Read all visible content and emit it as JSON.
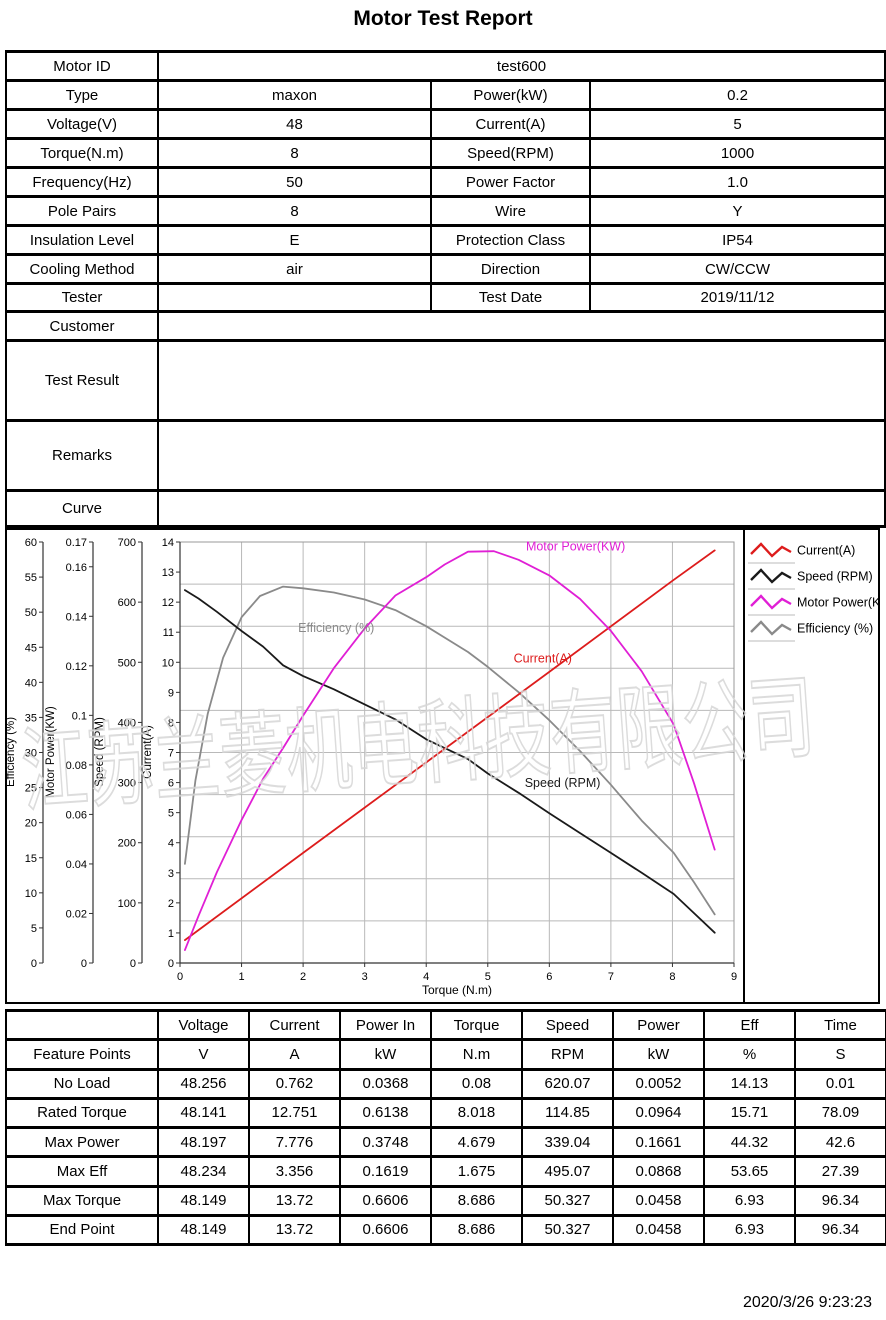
{
  "title": "Motor Test Report",
  "watermark": "江苏兰菱机电科技有限公司",
  "footer": {
    "timestamp": "2020/3/26 9:23:23"
  },
  "info_table": {
    "rows": [
      {
        "label": "Motor ID",
        "value": "test600"
      },
      {
        "label": "Type",
        "value": "maxon",
        "label2": "Power(kW)",
        "value2": "0.2"
      },
      {
        "label": "Voltage(V)",
        "value": "48",
        "label2": "Current(A)",
        "value2": "5"
      },
      {
        "label": "Torque(N.m)",
        "value": "8",
        "label2": "Speed(RPM)",
        "value2": "1000"
      },
      {
        "label": "Frequency(Hz)",
        "value": "50",
        "label2": "Power Factor",
        "value2": "1.0"
      },
      {
        "label": "Pole Pairs",
        "value": "8",
        "label2": "Wire",
        "value2": "Y"
      },
      {
        "label": "Insulation Level",
        "value": "E",
        "label2": "Protection Class",
        "value2": "IP54"
      },
      {
        "label": "Cooling Method",
        "value": "air",
        "label2": "Direction",
        "value2": "CW/CCW"
      },
      {
        "label": "Tester",
        "value": "",
        "label2": "Test Date",
        "value2": "2019/11/12"
      },
      {
        "label": "Customer",
        "value": ""
      },
      {
        "label": "Test Result",
        "value": ""
      },
      {
        "label": "Remarks",
        "value": ""
      },
      {
        "label": "Curve",
        "value": ""
      }
    ]
  },
  "chart_data": {
    "type": "line",
    "xlabel": "Torque (N.m)",
    "xlim": [
      0,
      9
    ],
    "x_ticks": [
      0,
      1,
      2,
      3,
      4,
      5,
      6,
      7,
      8,
      9
    ],
    "grid": true,
    "axes": [
      {
        "title": "Efficiency (%)",
        "min": 0,
        "max": 60,
        "ticks": [
          0,
          5,
          10,
          15,
          20,
          25,
          30,
          35,
          40,
          45,
          50,
          55,
          60
        ]
      },
      {
        "title": "Motor Power(KW)",
        "min": 0,
        "max": 0.17,
        "ticks": [
          0,
          0.02,
          0.04,
          0.06,
          0.08,
          0.1,
          0.12,
          0.14,
          0.16,
          0.17
        ]
      },
      {
        "title": "Speed (RPM)",
        "min": 0,
        "max": 700,
        "ticks": [
          0,
          100,
          200,
          300,
          400,
          500,
          600,
          700
        ]
      },
      {
        "title": "Current(A)",
        "min": 0,
        "max": 14,
        "ticks": [
          0,
          1,
          2,
          3,
          4,
          5,
          6,
          7,
          8,
          9,
          10,
          11,
          12,
          13,
          14
        ]
      }
    ],
    "series": [
      {
        "name": "Efficiency (%)",
        "color": "#8a8a8a",
        "axis": 0,
        "points": [
          [
            0.08,
            14.13
          ],
          [
            0.25,
            26
          ],
          [
            0.45,
            35.5
          ],
          [
            0.7,
            43.5
          ],
          [
            1,
            49.3
          ],
          [
            1.3,
            52.3
          ],
          [
            1.675,
            53.65
          ],
          [
            2,
            53.4
          ],
          [
            2.5,
            52.8
          ],
          [
            3,
            51.8
          ],
          [
            3.5,
            50.3
          ],
          [
            4,
            48.0
          ],
          [
            4.679,
            44.32
          ],
          [
            5,
            42.2
          ],
          [
            5.5,
            38.6
          ],
          [
            6,
            34.6
          ],
          [
            6.5,
            30.2
          ],
          [
            7,
            25.4
          ],
          [
            7.5,
            20.3
          ],
          [
            8.018,
            15.71
          ],
          [
            8.35,
            11.5
          ],
          [
            8.686,
            6.93
          ]
        ]
      },
      {
        "name": "Speed (RPM)",
        "color": "#1a1a1a",
        "axis": 2,
        "points": [
          [
            0.08,
            620.07
          ],
          [
            0.3,
            606
          ],
          [
            0.6,
            584
          ],
          [
            1,
            552
          ],
          [
            1.35,
            526
          ],
          [
            1.675,
            495.07
          ],
          [
            2,
            477
          ],
          [
            2.5,
            455
          ],
          [
            3,
            430
          ],
          [
            3.5,
            405
          ],
          [
            4,
            372
          ],
          [
            4.679,
            339.04
          ],
          [
            5,
            315
          ],
          [
            5.5,
            283
          ],
          [
            6,
            249
          ],
          [
            6.5,
            216
          ],
          [
            7,
            183
          ],
          [
            7.5,
            150
          ],
          [
            8.018,
            114.85
          ],
          [
            8.35,
            83
          ],
          [
            8.686,
            50.327
          ]
        ]
      },
      {
        "name": "Current(A)",
        "color": "#dd1c1c",
        "axis": 3,
        "points": [
          [
            0.08,
            0.762
          ],
          [
            2,
            3.66
          ],
          [
            4,
            6.67
          ],
          [
            6,
            9.68
          ],
          [
            8,
            12.71
          ],
          [
            8.686,
            13.72
          ]
        ]
      },
      {
        "name": "Motor Power(KW)",
        "color": "#e01fd5",
        "axis": 1,
        "points": [
          [
            0.08,
            0.0052
          ],
          [
            0.3,
            0.019
          ],
          [
            0.6,
            0.0367
          ],
          [
            1,
            0.0578
          ],
          [
            1.35,
            0.0744
          ],
          [
            1.675,
            0.0868
          ],
          [
            2,
            0.0999
          ],
          [
            2.5,
            0.1191
          ],
          [
            3,
            0.1351
          ],
          [
            3.5,
            0.1484
          ],
          [
            4,
            0.1558
          ],
          [
            4.3,
            0.1609
          ],
          [
            4.679,
            0.1661
          ],
          [
            5.1,
            0.1663
          ],
          [
            5.5,
            0.1628
          ],
          [
            6,
            0.1565
          ],
          [
            6.5,
            0.147
          ],
          [
            7,
            0.1341
          ],
          [
            7.5,
            0.1178
          ],
          [
            8.018,
            0.0964
          ],
          [
            8.35,
            0.0726
          ],
          [
            8.686,
            0.0458
          ]
        ]
      }
    ],
    "curve_labels": [
      {
        "text": "Motor Power(KW)",
        "color": "#e01fd5",
        "t": 5.62,
        "cu": 13.72
      },
      {
        "text": "Efficiency (%)",
        "color": "#8a8a8a",
        "t": 1.92,
        "cu": 11.0
      },
      {
        "text": "Current(A)",
        "color": "#dd1c1c",
        "t": 5.42,
        "cu": 10.0
      },
      {
        "text": "Speed (RPM)",
        "color": "#1a1a1a",
        "t": 5.6,
        "cu": 5.85
      }
    ],
    "legend": [
      {
        "label": "Current(A)",
        "color": "#dd1c1c"
      },
      {
        "label": "Speed (RPM)",
        "color": "#1a1a1a"
      },
      {
        "label": "Motor Power(K",
        "color": "#e01fd5"
      },
      {
        "label": "Efficiency (%)",
        "color": "#8a8a8a"
      }
    ],
    "legend_position": "top-right"
  },
  "feature_table": {
    "columns": [
      "Voltage",
      "Current",
      "Power In",
      "Torque",
      "Speed",
      "Power",
      "Eff",
      "Time"
    ],
    "units_label": "Feature Points",
    "units": [
      "V",
      "A",
      "kW",
      "N.m",
      "RPM",
      "kW",
      "%",
      "S"
    ],
    "rows": [
      {
        "name": "No Load",
        "values": [
          "48.256",
          "0.762",
          "0.0368",
          "0.08",
          "620.07",
          "0.0052",
          "14.13",
          "0.01"
        ]
      },
      {
        "name": "Rated Torque",
        "values": [
          "48.141",
          "12.751",
          "0.6138",
          "8.018",
          "114.85",
          "0.0964",
          "15.71",
          "78.09"
        ]
      },
      {
        "name": "Max Power",
        "values": [
          "48.197",
          "7.776",
          "0.3748",
          "4.679",
          "339.04",
          "0.1661",
          "44.32",
          "42.6"
        ]
      },
      {
        "name": "Max Eff",
        "values": [
          "48.234",
          "3.356",
          "0.1619",
          "1.675",
          "495.07",
          "0.0868",
          "53.65",
          "27.39"
        ]
      },
      {
        "name": "Max Torque",
        "values": [
          "48.149",
          "13.72",
          "0.6606",
          "8.686",
          "50.327",
          "0.0458",
          "6.93",
          "96.34"
        ]
      },
      {
        "name": "End Point",
        "values": [
          "48.149",
          "13.72",
          "0.6606",
          "8.686",
          "50.327",
          "0.0458",
          "6.93",
          "96.34"
        ]
      }
    ]
  }
}
